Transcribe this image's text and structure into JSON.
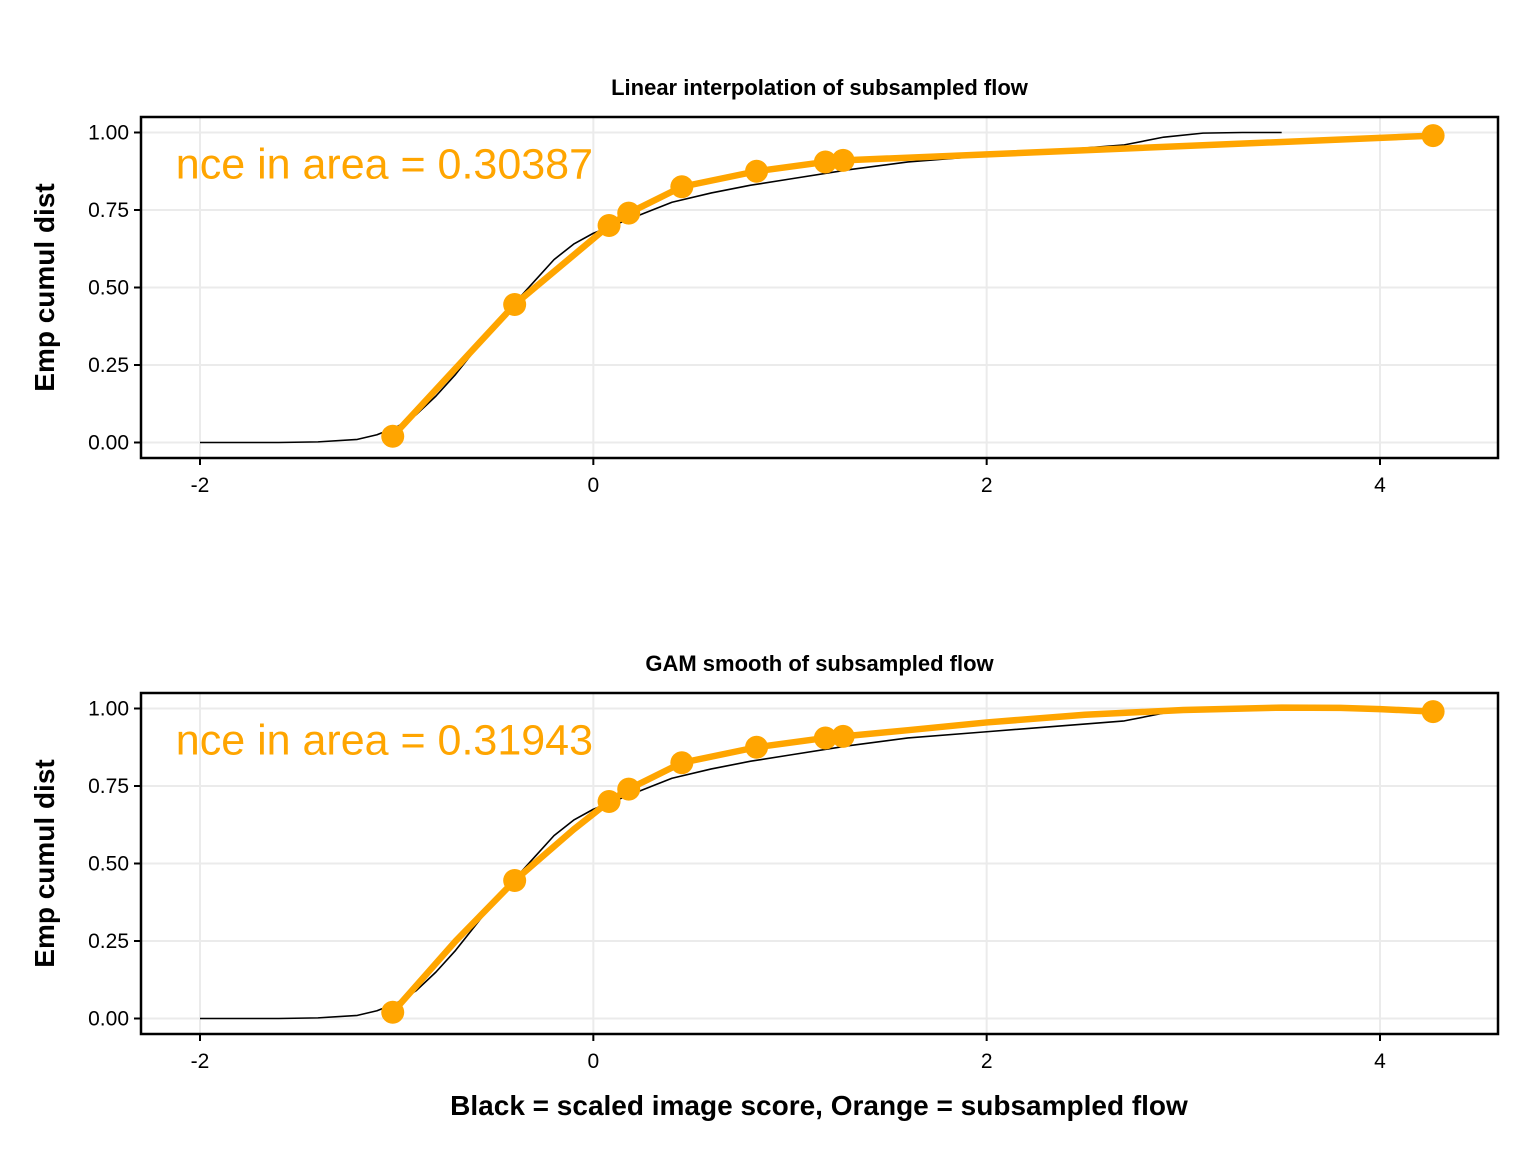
{
  "xlabel": "Black = scaled image score, Orange = subsampled flow",
  "colors": {
    "flow": "#FFA500",
    "image": "#000000",
    "grid": "#ebebeb"
  },
  "chart_data": [
    {
      "type": "line",
      "title": "Linear interpolation of subsampled flow",
      "ylabel": "Emp cumul dist",
      "xlabel": "Black = scaled image score, Orange = subsampled flow",
      "annotation": "nce in area = 0.30387",
      "xlim": [
        -2.3,
        4.6
      ],
      "ylim": [
        -0.05,
        1.05
      ],
      "x_ticks": [
        -2,
        0,
        2,
        4
      ],
      "x_tick_labels": [
        "-2",
        "0",
        "2",
        "4"
      ],
      "y_ticks": [
        0,
        0.25,
        0.5,
        0.75,
        1
      ],
      "y_tick_labels": [
        "0.00",
        "0.25",
        "0.50",
        "0.75",
        "1.00"
      ],
      "grid": true,
      "series": [
        {
          "name": "Black = scaled image score",
          "style": "thin-line",
          "x": [
            -2.0,
            -1.6,
            -1.4,
            -1.2,
            -1.1,
            -1.0,
            -0.9,
            -0.8,
            -0.7,
            -0.6,
            -0.5,
            -0.4,
            -0.3,
            -0.2,
            -0.1,
            0.0,
            0.1,
            0.2,
            0.3,
            0.4,
            0.6,
            0.8,
            1.0,
            1.3,
            1.6,
            2.0,
            2.4,
            2.7,
            2.9,
            3.1,
            3.3,
            3.5
          ],
          "y": [
            0.0,
            0.0,
            0.002,
            0.01,
            0.025,
            0.05,
            0.09,
            0.15,
            0.22,
            0.3,
            0.38,
            0.45,
            0.52,
            0.59,
            0.64,
            0.675,
            0.7,
            0.725,
            0.75,
            0.775,
            0.805,
            0.83,
            0.85,
            0.88,
            0.905,
            0.925,
            0.945,
            0.96,
            0.985,
            0.998,
            1.0,
            1.0
          ]
        },
        {
          "name": "Orange = subsampled flow",
          "style": "thick-line-with-points",
          "x": [
            -1.02,
            -0.4,
            0.08,
            0.18,
            0.45,
            0.83,
            1.18,
            1.27,
            4.27
          ],
          "y": [
            0.02,
            0.445,
            0.7,
            0.74,
            0.825,
            0.875,
            0.905,
            0.91,
            0.99
          ]
        }
      ]
    },
    {
      "type": "line",
      "title": "GAM smooth of subsampled flow",
      "ylabel": "Emp cumul dist",
      "xlabel": "Black = scaled image score, Orange = subsampled flow",
      "annotation": "nce in area = 0.31943",
      "xlim": [
        -2.3,
        4.6
      ],
      "ylim": [
        -0.05,
        1.05
      ],
      "x_ticks": [
        -2,
        0,
        2,
        4
      ],
      "x_tick_labels": [
        "-2",
        "0",
        "2",
        "4"
      ],
      "y_ticks": [
        0,
        0.25,
        0.5,
        0.75,
        1
      ],
      "y_tick_labels": [
        "0.00",
        "0.25",
        "0.50",
        "0.75",
        "1.00"
      ],
      "grid": true,
      "series": [
        {
          "name": "Black = scaled image score",
          "style": "thin-line",
          "x": [
            -2.0,
            -1.6,
            -1.4,
            -1.2,
            -1.1,
            -1.0,
            -0.9,
            -0.8,
            -0.7,
            -0.6,
            -0.5,
            -0.4,
            -0.3,
            -0.2,
            -0.1,
            0.0,
            0.1,
            0.2,
            0.3,
            0.4,
            0.6,
            0.8,
            1.0,
            1.3,
            1.6,
            2.0,
            2.4,
            2.7,
            2.9,
            3.1,
            3.3,
            3.5
          ],
          "y": [
            0.0,
            0.0,
            0.002,
            0.01,
            0.025,
            0.05,
            0.09,
            0.15,
            0.22,
            0.3,
            0.38,
            0.45,
            0.52,
            0.59,
            0.64,
            0.675,
            0.7,
            0.725,
            0.75,
            0.775,
            0.805,
            0.83,
            0.85,
            0.88,
            0.905,
            0.925,
            0.945,
            0.96,
            0.985,
            0.998,
            1.0,
            1.0
          ]
        },
        {
          "name": "Orange = subsampled flow",
          "style": "thick-line",
          "x": [
            -1.02,
            -0.7,
            -0.4,
            -0.1,
            0.08,
            0.18,
            0.45,
            0.83,
            1.18,
            1.27,
            1.6,
            2.0,
            2.5,
            3.0,
            3.5,
            3.8,
            4.0,
            4.27
          ],
          "y": [
            0.02,
            0.25,
            0.445,
            0.61,
            0.7,
            0.74,
            0.825,
            0.875,
            0.905,
            0.91,
            0.93,
            0.955,
            0.98,
            0.995,
            1.003,
            1.002,
            0.998,
            0.99
          ]
        },
        {
          "name": "Orange points",
          "style": "points",
          "x": [
            -1.02,
            -0.4,
            0.08,
            0.18,
            0.45,
            0.83,
            1.18,
            1.27,
            4.27
          ],
          "y": [
            0.02,
            0.445,
            0.7,
            0.74,
            0.825,
            0.875,
            0.905,
            0.91,
            0.99
          ]
        }
      ]
    }
  ]
}
